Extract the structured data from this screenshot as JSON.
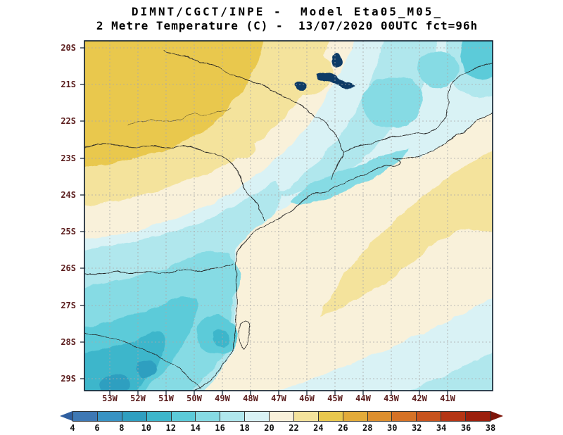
{
  "title": {
    "line1": "DIMNT/CGCT/INPE -  Model Eta05_M05_",
    "line2": "2 Metre Temperature (C) -  13/07/2020 00UTC fct=96h"
  },
  "axes": {
    "lat_labels": [
      "20S",
      "21S",
      "22S",
      "23S",
      "24S",
      "25S",
      "26S",
      "27S",
      "28S",
      "29S"
    ],
    "lon_labels": [
      "53W",
      "52W",
      "51W",
      "50W",
      "49W",
      "48W",
      "47W",
      "46W",
      "45W",
      "44W",
      "43W",
      "42W",
      "41W"
    ]
  },
  "colorbar": {
    "tick_labels": [
      "4",
      "6",
      "8",
      "10",
      "12",
      "14",
      "16",
      "18",
      "20",
      "22",
      "24",
      "26",
      "28",
      "30",
      "32",
      "34",
      "36",
      "38"
    ],
    "segment_colors": [
      "#3e78b5",
      "#3893c4",
      "#2f9fc0",
      "#3db6cb",
      "#5ccbd9",
      "#86dbe4",
      "#b0e7ed",
      "#d9f2f5",
      "#f9f1da",
      "#f4e39c",
      "#e9c84e",
      "#e3ab3a",
      "#dd8f2e",
      "#d57226",
      "#c8531d",
      "#b53514",
      "#9c1f0c"
    ],
    "arrow_left_color": "#2f5fa0",
    "arrow_right_color": "#7e150a"
  },
  "palette": {
    "t8_10": "#2f9fc0",
    "t10_12": "#3db6cb",
    "t12_14": "#5ccbd9",
    "t14_16": "#86dbe4",
    "t16_18": "#b0e7ed",
    "t18_20": "#d9f2f5",
    "t20_22": "#f9f1da",
    "t22_24": "#f4e39c",
    "t24_26": "#e9c84e",
    "lake": "#0d3a66"
  },
  "theme": {
    "border": "#222222",
    "grid": "#a9a9a9",
    "frame": "#0a1a2a",
    "axis_text": "#5a1c1c",
    "label_text": "#111111",
    "title_text": "#000000",
    "background": "#ffffff"
  },
  "chart_data": {
    "type": "heatmap",
    "title": "2 Metre Temperature (C)",
    "institution_model": "DIMNT/CGCT/INPE Model Eta05_M05_",
    "valid_time": "13/07/2020 00UTC",
    "forecast_hour": "fct=96h",
    "units": "C",
    "lon_ticks_deg_w": [
      53,
      52,
      51,
      50,
      49,
      48,
      47,
      46,
      45,
      44,
      43,
      42,
      41
    ],
    "lat_ticks_deg_s": [
      20,
      21,
      22,
      23,
      24,
      25,
      26,
      27,
      28,
      29
    ],
    "lon_range_deg_w": [
      53.9,
      39.4
    ],
    "lat_range_deg_s": [
      19.8,
      29.3
    ],
    "levels_c": [
      4,
      6,
      8,
      10,
      12,
      14,
      16,
      18,
      20,
      22,
      24,
      26,
      28,
      30,
      32,
      34,
      36,
      38
    ],
    "legend_position": "bottom",
    "grid": "dashed",
    "regions": [
      {
        "area": "northwest interior (western Sao Paulo)",
        "temp_range_c": [
          24,
          26
        ]
      },
      {
        "area": "band around northwest interior",
        "temp_range_c": [
          22,
          24
        ]
      },
      {
        "area": "central / eastern highlands (Mantiqueira, Serra do Mar)",
        "temp_range_c": [
          14,
          18
        ]
      },
      {
        "area": "southern interior plateau (Parana / Santa Catarina)",
        "temp_range_c": [
          8,
          14
        ]
      },
      {
        "area": "coastal ocean strip",
        "temp_range_c": [
          20,
          22
        ]
      },
      {
        "area": "offshore warm band running NE-SW",
        "temp_range_c": [
          22,
          24
        ]
      },
      {
        "area": "far southeast offshore",
        "temp_range_c": [
          16,
          20
        ]
      }
    ]
  }
}
